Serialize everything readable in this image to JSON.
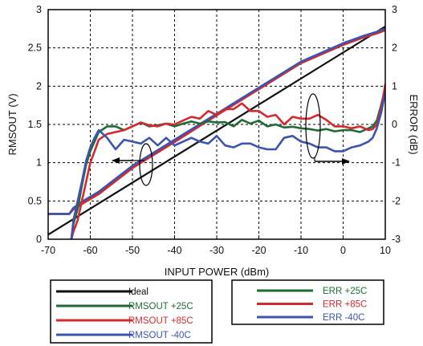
{
  "chart_data": {
    "type": "line",
    "xlabel": "INPUT POWER (dBm)",
    "ylabel": "RMSOUT (V)",
    "y2label": "ERROR (dB)",
    "xlim": [
      -70,
      10
    ],
    "ylim": [
      0,
      3
    ],
    "y2lim": [
      -3,
      3
    ],
    "x_ticks": [
      "-70",
      "-60",
      "-50",
      "-40",
      "-30",
      "-20",
      "-10",
      "0",
      "10"
    ],
    "y_ticks": [
      "0",
      "0.5",
      "1",
      "1.5",
      "2",
      "2.5",
      "3"
    ],
    "y2_ticks": [
      "-3",
      "-2",
      "-1",
      "0",
      "1",
      "2",
      "3"
    ],
    "grid": true,
    "legend_left": [
      {
        "label": "Ideal",
        "color": "#111111",
        "text_color": "#111111"
      },
      {
        "label": "RMSOUT +25C",
        "color": "#1f6b36",
        "text_color": "#1f6b36"
      },
      {
        "label": "RMSOUT +85C",
        "color": "#d42a2f",
        "text_color": "#d42a2f"
      },
      {
        "label": "RMSOUT  -40C",
        "color": "#3c54b0",
        "text_color": "#3c54b0"
      }
    ],
    "legend_right": [
      {
        "label": "ERR +25C",
        "color": "#1f6b36",
        "text_color": "#1f6b36"
      },
      {
        "label": "ERR +85C",
        "color": "#d42a2f",
        "text_color": "#d42a2f"
      },
      {
        "label": "ERR  -40C",
        "color": "#3c54b0",
        "text_color": "#3c54b0"
      }
    ],
    "series": [
      {
        "name": "Ideal",
        "axis": "left",
        "color": "#111111",
        "x": [
          -70,
          10
        ],
        "y": [
          0.06,
          2.78
        ]
      },
      {
        "name": "RMSOUT +25C",
        "axis": "left",
        "color": "#1f6b36",
        "x": [
          -70,
          -65,
          -64,
          -62,
          -58,
          -50,
          -40,
          -30,
          -20,
          -10,
          0,
          5,
          8,
          10
        ],
        "y": [
          0.33,
          0.33,
          0.4,
          0.48,
          0.61,
          0.95,
          1.29,
          1.63,
          1.97,
          2.31,
          2.55,
          2.65,
          2.7,
          2.74
        ]
      },
      {
        "name": "RMSOUT +85C",
        "axis": "left",
        "color": "#d42a2f",
        "x": [
          -70,
          -65,
          -64,
          -62,
          -58,
          -50,
          -40,
          -30,
          -20,
          -10,
          0,
          5,
          8,
          10
        ],
        "y": [
          0.33,
          0.33,
          0.39,
          0.46,
          0.59,
          0.93,
          1.27,
          1.62,
          1.96,
          2.3,
          2.54,
          2.64,
          2.69,
          2.73
        ]
      },
      {
        "name": "RMSOUT -40C",
        "axis": "left",
        "color": "#3c54b0",
        "x": [
          -70,
          -65,
          -64,
          -62,
          -58,
          -50,
          -40,
          -30,
          -20,
          -10,
          0,
          5,
          8,
          10
        ],
        "y": [
          0.33,
          0.33,
          0.41,
          0.49,
          0.62,
          0.96,
          1.3,
          1.64,
          1.98,
          2.32,
          2.56,
          2.66,
          2.71,
          2.75
        ]
      },
      {
        "name": "ERR +25C",
        "axis": "right",
        "color": "#1f6b36",
        "x": [
          -64.5,
          -64,
          -63,
          -62,
          -61,
          -60,
          -59,
          -58,
          -56,
          -54,
          -52,
          -50,
          -48,
          -46,
          -44,
          -42,
          -40,
          -38,
          -36,
          -34,
          -32,
          -30,
          -28,
          -26,
          -24,
          -22,
          -20,
          -18,
          -16,
          -14,
          -12,
          -10,
          -8,
          -6,
          -4,
          -2,
          0,
          2,
          4,
          6,
          7,
          8,
          9,
          10
        ],
        "y": [
          -3,
          -2.6,
          -2.2,
          -1.6,
          -1.05,
          -0.7,
          -0.45,
          -0.2,
          -0.05,
          -0.05,
          -0.15,
          -0.05,
          0.05,
          -0.05,
          -0.02,
          0.02,
          -0.05,
          0.02,
          0.08,
          0.02,
          0.08,
          0.05,
          0.06,
          -0.05,
          0.12,
          0.02,
          0.1,
          -0.05,
          0.0,
          -0.08,
          -0.06,
          -0.1,
          -0.12,
          -0.16,
          -0.12,
          -0.18,
          -0.15,
          -0.15,
          -0.2,
          -0.1,
          -0.05,
          0.1,
          0.5,
          0.95
        ]
      },
      {
        "name": "ERR +85C",
        "axis": "right",
        "color": "#d42a2f",
        "x": [
          -64.5,
          -64,
          -63,
          -62,
          -61,
          -60,
          -59,
          -58,
          -56,
          -54,
          -52,
          -50,
          -48,
          -46,
          -44,
          -42,
          -40,
          -38,
          -36,
          -34,
          -32,
          -30,
          -28,
          -26,
          -24,
          -22,
          -20,
          -18,
          -16,
          -14,
          -12,
          -10,
          -8,
          -6,
          -4,
          -2,
          0,
          2,
          4,
          6,
          7,
          8,
          9,
          10
        ],
        "y": [
          -3,
          -2.8,
          -2.5,
          -2.0,
          -1.5,
          -1.0,
          -0.7,
          -0.4,
          -0.25,
          -0.2,
          -0.15,
          -0.05,
          0.05,
          -0.02,
          -0.05,
          0.02,
          0.0,
          0.1,
          0.2,
          0.15,
          0.35,
          0.25,
          0.4,
          0.4,
          0.55,
          0.35,
          0.35,
          0.2,
          0.25,
          0.0,
          0.2,
          0.15,
          0.15,
          0.25,
          0.12,
          -0.05,
          -0.05,
          -0.1,
          -0.05,
          -0.15,
          -0.12,
          0.0,
          0.4,
          1.05
        ]
      },
      {
        "name": "ERR -40C",
        "axis": "right",
        "color": "#3c54b0",
        "x": [
          -64.5,
          -64,
          -63,
          -62,
          -61,
          -60,
          -59,
          -58,
          -56,
          -54,
          -52,
          -50,
          -48,
          -46,
          -44,
          -42,
          -40,
          -38,
          -36,
          -34,
          -32,
          -30,
          -28,
          -26,
          -24,
          -22,
          -20,
          -18,
          -16,
          -14,
          -12,
          -10,
          -8,
          -6,
          -4,
          -2,
          0,
          2,
          4,
          6,
          7,
          8,
          9,
          10
        ],
        "y": [
          -3,
          -2.5,
          -2.0,
          -1.5,
          -0.95,
          -0.6,
          -0.35,
          -0.15,
          -0.35,
          -0.65,
          -0.4,
          -0.45,
          -0.5,
          -0.35,
          -0.55,
          -0.35,
          -0.55,
          -0.45,
          -0.35,
          -0.45,
          -0.5,
          -0.3,
          -0.55,
          -0.6,
          -0.5,
          -0.5,
          -0.6,
          -0.65,
          -0.65,
          -0.35,
          -0.3,
          -0.45,
          -0.5,
          -0.6,
          -0.6,
          -0.7,
          -0.7,
          -0.6,
          -0.55,
          -0.45,
          -0.35,
          -0.1,
          0.3,
          0.85
        ]
      }
    ]
  }
}
